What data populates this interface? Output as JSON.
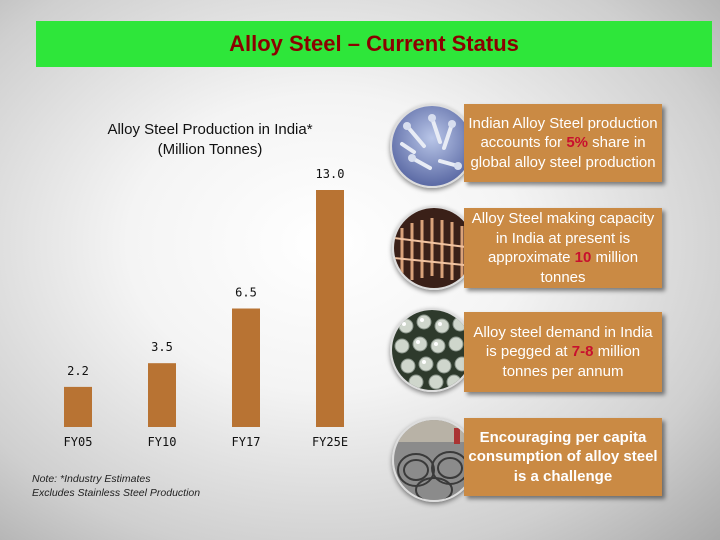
{
  "slide": {
    "title": "Alloy Steel – Current Status"
  },
  "chart_data": {
    "type": "bar",
    "title": "Alloy Steel Production in India*",
    "subtitle": "(Million Tonnes)",
    "categories": [
      "FY05",
      "FY10",
      "FY17",
      "FY25E"
    ],
    "values": [
      2.2,
      3.5,
      6.5,
      13.0
    ],
    "value_labels": [
      "2.2",
      "3.5",
      "6.5",
      "13.0"
    ],
    "ylim": [
      0,
      13.0
    ],
    "grid": false,
    "bar_color": "#b87333"
  },
  "notes": {
    "line1": "Note: *Industry Estimates",
    "line2": "Excludes Stainless Steel Production"
  },
  "info_boxes": [
    {
      "parts": [
        {
          "text": "Indian Alloy Steel production accounts for "
        },
        {
          "text": "5%",
          "highlight": true
        },
        {
          "text": " share in global alloy steel production"
        }
      ],
      "bold": false,
      "image_icon": "bolts-image"
    },
    {
      "parts": [
        {
          "text": "Alloy Steel making capacity in India at present is approximate "
        },
        {
          "text": "10",
          "highlight": true
        },
        {
          "text": " million tonnes"
        }
      ],
      "bold": false,
      "image_icon": "copper-rods-image"
    },
    {
      "parts": [
        {
          "text": "Alloy steel demand in India is pegged at "
        },
        {
          "text": "7-8",
          "highlight": true
        },
        {
          "text": " million tonnes per annum"
        }
      ],
      "bold": false,
      "image_icon": "steel-balls-image"
    },
    {
      "parts": [
        {
          "text": "Encouraging per capita consumption of alloy steel is a challenge"
        }
      ],
      "bold": true,
      "image_icon": "wire-coils-image"
    }
  ],
  "colors": {
    "title_bar": "#2ee63a",
    "title_text": "#8b0000",
    "box_fill": "#ca8a44",
    "highlight": "#c8102e"
  }
}
